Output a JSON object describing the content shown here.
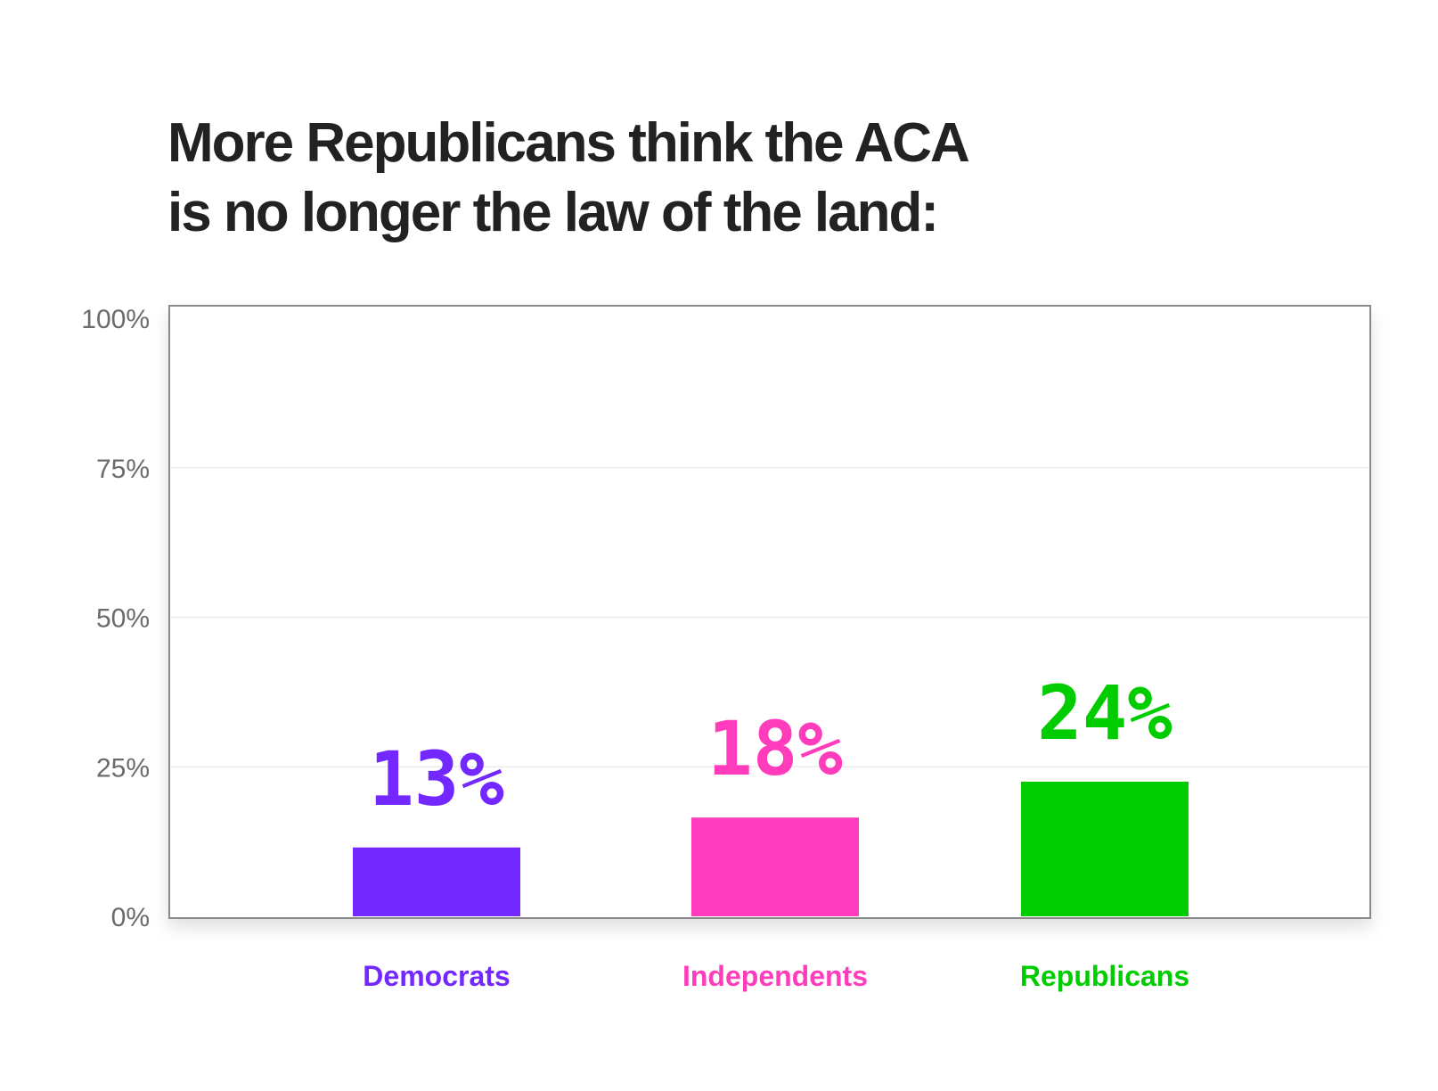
{
  "chart_data": {
    "type": "bar",
    "title_lines": [
      "More Republicans think the ACA",
      "is no longer the law of the land:"
    ],
    "categories": [
      "Democrats",
      "Independents",
      "Republicans"
    ],
    "values": [
      13,
      18,
      24
    ],
    "value_labels": [
      "13%",
      "18%",
      "24%"
    ],
    "colors": [
      "#7228ff",
      "#ff3cbb",
      "#00cc00"
    ],
    "ylim": [
      0,
      100
    ],
    "yticks": [
      0,
      25,
      50,
      75,
      100
    ],
    "ytick_labels": [
      "0%",
      "25%",
      "50%",
      "75%",
      "100%"
    ],
    "xlabel": "",
    "ylabel": "",
    "grid": true
  }
}
